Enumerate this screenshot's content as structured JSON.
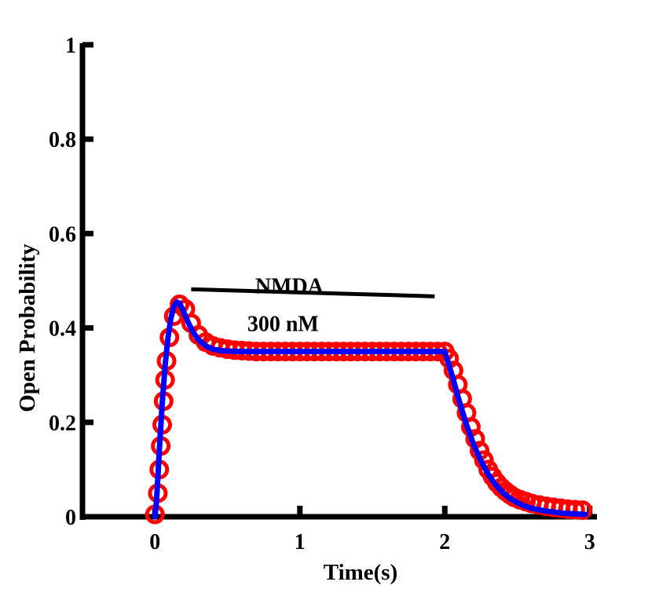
{
  "chart_data": {
    "type": "line",
    "title": "",
    "xlabel": "Time(s)",
    "ylabel": "Open Probability",
    "xlim": [
      -0.5,
      3.05
    ],
    "ylim": [
      0,
      1
    ],
    "xticks": [
      0,
      1,
      2,
      3
    ],
    "xtick_labels": [
      "0",
      "1",
      "2",
      "3"
    ],
    "yticks": [
      0,
      0.2,
      0.4,
      0.6,
      0.8,
      1
    ],
    "ytick_labels": [
      "0",
      "0.2",
      "0.4",
      "0.6",
      "0.8",
      "1"
    ],
    "grid": false,
    "annotation": {
      "label_top": "NMDA",
      "label_bottom": "300 nM",
      "bar": {
        "x": [
          0.25,
          1.93
        ],
        "y": [
          0.482,
          0.467
        ]
      }
    },
    "series": [
      {
        "style": "markers",
        "marker": "open-circle",
        "color": "#ff0000",
        "x": [
          0,
          0.02,
          0.03,
          0.04,
          0.05,
          0.06,
          0.07,
          0.08,
          0.1,
          0.13,
          0.17,
          0.21,
          0.25,
          0.3,
          0.35,
          0.4,
          0.45,
          0.5,
          0.55,
          0.6,
          0.65,
          0.7,
          0.75,
          0.8,
          0.85,
          0.9,
          0.95,
          1.0,
          1.05,
          1.1,
          1.15,
          1.2,
          1.25,
          1.3,
          1.35,
          1.4,
          1.45,
          1.5,
          1.55,
          1.6,
          1.65,
          1.7,
          1.75,
          1.8,
          1.85,
          1.9,
          1.95,
          2.0,
          2.03,
          2.06,
          2.09,
          2.12,
          2.15,
          2.18,
          2.21,
          2.24,
          2.27,
          2.3,
          2.33,
          2.36,
          2.39,
          2.42,
          2.45,
          2.48,
          2.52,
          2.56,
          2.6,
          2.65,
          2.7,
          2.75,
          2.8,
          2.85,
          2.9,
          2.95
        ],
        "y": [
          0.005,
          0.05,
          0.1,
          0.15,
          0.195,
          0.245,
          0.29,
          0.33,
          0.38,
          0.425,
          0.45,
          0.44,
          0.41,
          0.385,
          0.37,
          0.362,
          0.358,
          0.355,
          0.353,
          0.352,
          0.351,
          0.35,
          0.35,
          0.35,
          0.35,
          0.35,
          0.35,
          0.35,
          0.35,
          0.35,
          0.35,
          0.35,
          0.35,
          0.35,
          0.35,
          0.35,
          0.35,
          0.35,
          0.35,
          0.35,
          0.35,
          0.35,
          0.35,
          0.35,
          0.35,
          0.35,
          0.35,
          0.35,
          0.335,
          0.31,
          0.28,
          0.25,
          0.22,
          0.19,
          0.165,
          0.14,
          0.12,
          0.1,
          0.085,
          0.072,
          0.062,
          0.054,
          0.047,
          0.041,
          0.036,
          0.032,
          0.028,
          0.025,
          0.022,
          0.02,
          0.018,
          0.016,
          0.015,
          0.014
        ]
      },
      {
        "style": "line",
        "color": "#0000ff",
        "x": [
          0,
          0.01,
          0.02,
          0.03,
          0.05,
          0.07,
          0.09,
          0.11,
          0.13,
          0.15,
          0.17,
          0.19,
          0.21,
          0.24,
          0.27,
          0.3,
          0.35,
          0.4,
          0.45,
          0.5,
          0.6,
          0.7,
          0.8,
          1.0,
          1.5,
          1.98,
          2.0,
          2.05,
          2.1,
          2.15,
          2.2,
          2.25,
          2.3,
          2.35,
          2.4,
          2.45,
          2.5,
          2.55,
          2.6,
          2.7,
          2.8,
          2.9,
          2.97
        ],
        "y": [
          0,
          0.03,
          0.08,
          0.14,
          0.24,
          0.32,
          0.38,
          0.42,
          0.445,
          0.455,
          0.452,
          0.44,
          0.425,
          0.405,
          0.388,
          0.375,
          0.362,
          0.355,
          0.352,
          0.351,
          0.35,
          0.35,
          0.35,
          0.35,
          0.35,
          0.35,
          0.35,
          0.3,
          0.245,
          0.195,
          0.152,
          0.118,
          0.09,
          0.068,
          0.051,
          0.039,
          0.03,
          0.023,
          0.018,
          0.012,
          0.008,
          0.006,
          0.005
        ]
      }
    ]
  }
}
